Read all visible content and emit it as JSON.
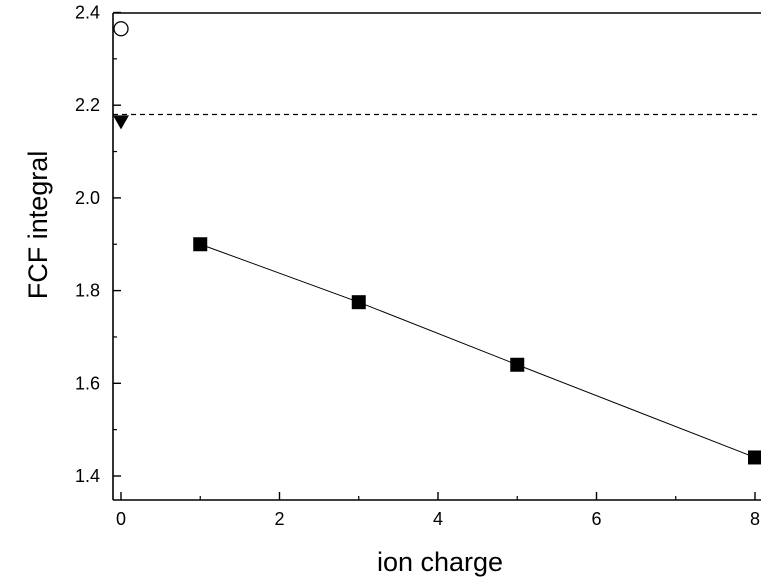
{
  "chart_data": {
    "type": "scatter",
    "title": "",
    "xlabel": "ion charge",
    "ylabel": "FCF integral",
    "xlim": [
      -0.1,
      8.0
    ],
    "ylim": [
      1.35,
      2.4
    ],
    "xticks": [
      0,
      2,
      4,
      6,
      8
    ],
    "yticks": [
      1.4,
      1.6,
      1.8,
      2.0,
      2.2,
      2.4
    ],
    "x_tick_labels": [
      "0",
      "2",
      "4",
      "6",
      "8"
    ],
    "y_tick_labels": [
      "1.4",
      "1.6",
      "1.8",
      "2.0",
      "2.2",
      "2.4"
    ],
    "grid": false,
    "legend": "none",
    "series": [
      {
        "marker": "filled-square",
        "line": "solid",
        "color": "#000000",
        "x": [
          1,
          3,
          5,
          8
        ],
        "y": [
          1.9,
          1.775,
          1.64,
          1.44
        ]
      },
      {
        "marker": "open-circle",
        "line": "none",
        "color": "#000000",
        "x": [
          0
        ],
        "y": [
          2.365
        ]
      },
      {
        "marker": "filled-triangle-down",
        "line": "none",
        "color": "#000000",
        "x": [
          0
        ],
        "y": [
          2.165
        ]
      }
    ],
    "reference_lines": [
      {
        "orientation": "horizontal",
        "y": 2.18,
        "style": "dashed",
        "color": "#000000"
      }
    ]
  }
}
